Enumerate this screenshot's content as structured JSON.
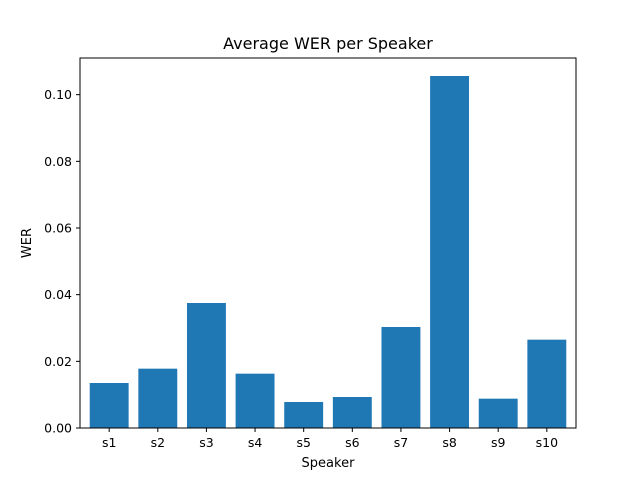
{
  "chart_data": {
    "type": "bar",
    "title": "Average WER per Speaker",
    "xlabel": "Speaker",
    "ylabel": "WER",
    "categories": [
      "s1",
      "s2",
      "s3",
      "s4",
      "s5",
      "s6",
      "s7",
      "s8",
      "s9",
      "s10"
    ],
    "values": [
      0.0135,
      0.0178,
      0.0375,
      0.0163,
      0.0078,
      0.0093,
      0.0303,
      0.1056,
      0.0088,
      0.0265
    ],
    "ylim": [
      0,
      0.111
    ],
    "yticks": [
      0.0,
      0.02,
      0.04,
      0.06,
      0.08,
      0.1
    ],
    "ytick_labels": [
      "0.00",
      "0.02",
      "0.04",
      "0.06",
      "0.08",
      "0.10"
    ],
    "bar_color": "#1f77b4",
    "grid": false,
    "legend": "none"
  }
}
